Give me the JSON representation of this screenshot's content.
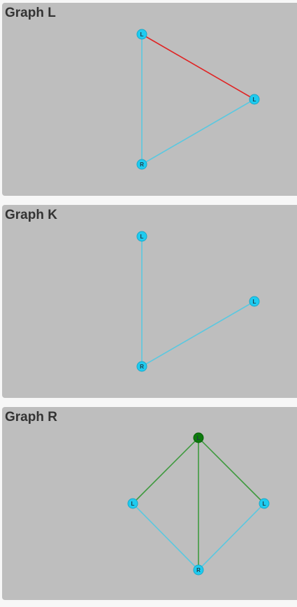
{
  "colors": {
    "panel_bg": "#bebebe",
    "node_default": "#1ecbf0",
    "node_stroke": "#19a9c9",
    "node_highlight": "#0d7a0d",
    "edge_default": "#5bc8e0",
    "edge_red": "#e02424",
    "edge_green": "#3f9a3f"
  },
  "graphs": {
    "L": {
      "title": "Graph L",
      "nodes": [
        {
          "id": "n1",
          "label": "L"
        },
        {
          "id": "n2",
          "label": "L"
        },
        {
          "id": "n3",
          "label": "R"
        }
      ],
      "edges": [
        {
          "from": "n1",
          "to": "n2",
          "color": "red"
        },
        {
          "from": "n1",
          "to": "n3",
          "color": "default"
        },
        {
          "from": "n2",
          "to": "n3",
          "color": "default"
        }
      ]
    },
    "K": {
      "title": "Graph K",
      "nodes": [
        {
          "id": "n1",
          "label": "L"
        },
        {
          "id": "n2",
          "label": "L"
        },
        {
          "id": "n3",
          "label": "R"
        }
      ],
      "edges": [
        {
          "from": "n1",
          "to": "n3",
          "color": "default"
        },
        {
          "from": "n2",
          "to": "n3",
          "color": "default"
        }
      ]
    },
    "R": {
      "title": "Graph R",
      "nodes": [
        {
          "id": "n0",
          "label": "L",
          "highlight": true
        },
        {
          "id": "n1",
          "label": "L"
        },
        {
          "id": "n2",
          "label": "L"
        },
        {
          "id": "n3",
          "label": "R"
        }
      ],
      "edges": [
        {
          "from": "n0",
          "to": "n1",
          "color": "green"
        },
        {
          "from": "n0",
          "to": "n2",
          "color": "green"
        },
        {
          "from": "n0",
          "to": "n3",
          "color": "green"
        },
        {
          "from": "n1",
          "to": "n3",
          "color": "default"
        },
        {
          "from": "n2",
          "to": "n3",
          "color": "default"
        }
      ]
    }
  }
}
